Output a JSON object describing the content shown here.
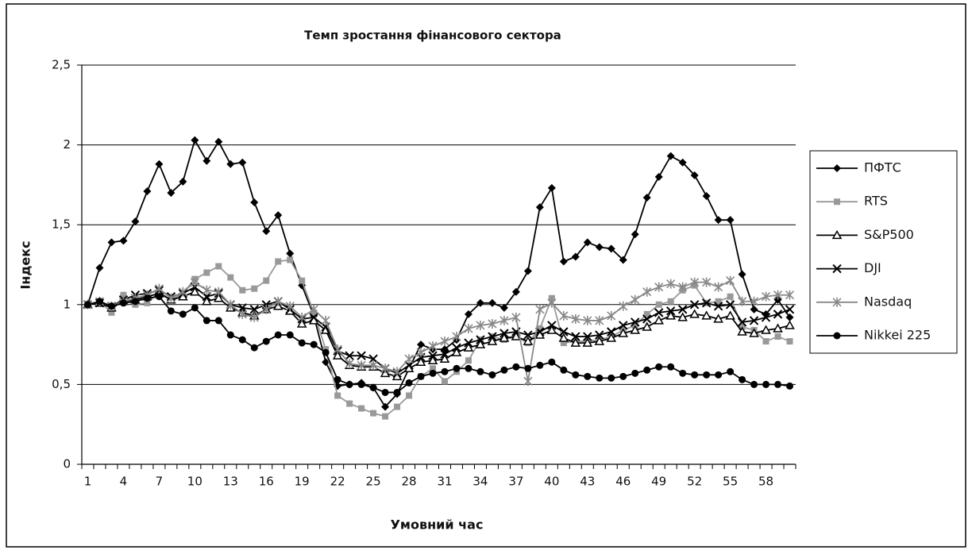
{
  "chart_data": {
    "type": "line",
    "title": "Темп зростання фінансового сектора",
    "xlabel": "Умовний час",
    "ylabel": "Індекс",
    "categories": [
      "1",
      null,
      null,
      "4",
      null,
      null,
      "7",
      null,
      null,
      "10",
      null,
      null,
      "13",
      null,
      null,
      "16",
      null,
      null,
      "19",
      null,
      null,
      "22",
      null,
      null,
      "25",
      null,
      null,
      "28",
      null,
      null,
      "31",
      null,
      null,
      "34",
      null,
      null,
      "37",
      null,
      null,
      "40",
      null,
      null,
      "43",
      null,
      null,
      "46",
      null,
      null,
      "49",
      null,
      null,
      "52",
      null,
      null,
      "55",
      null,
      null,
      "58",
      null,
      null
    ],
    "ylim": [
      0,
      2.5
    ],
    "yticks": [
      0,
      {
        "value": 0.5,
        "label": "0,5"
      },
      1,
      {
        "value": 1.5,
        "label": "1,5"
      },
      2,
      {
        "value": 2.5,
        "label": "2,5"
      }
    ],
    "grid": true,
    "legend": "right",
    "series": [
      {
        "name": "ПФТС",
        "color": "#000000",
        "marker": "diamond",
        "values": [
          1.0,
          1.23,
          1.39,
          1.4,
          1.52,
          1.71,
          1.88,
          1.7,
          1.77,
          2.03,
          1.9,
          2.02,
          1.88,
          1.89,
          1.64,
          1.46,
          1.56,
          1.32,
          1.12,
          0.93,
          0.64,
          0.49,
          0.5,
          0.51,
          0.48,
          0.36,
          0.44,
          0.6,
          0.75,
          0.72,
          0.72,
          0.78,
          0.94,
          1.01,
          1.01,
          0.98,
          1.08,
          1.21,
          1.61,
          1.73,
          1.27,
          1.3,
          1.39,
          1.36,
          1.35,
          1.28,
          1.44,
          1.67,
          1.8,
          1.93,
          1.89,
          1.81,
          1.68,
          1.53,
          1.53,
          1.19,
          0.97,
          0.94,
          1.03,
          0.92
        ]
      },
      {
        "name": "RTS",
        "color": "#999999",
        "marker": "square",
        "values": [
          1.0,
          1.02,
          0.95,
          1.06,
          1.0,
          1.01,
          1.08,
          1.03,
          1.07,
          1.16,
          1.2,
          1.24,
          1.17,
          1.09,
          1.1,
          1.15,
          1.27,
          1.28,
          1.15,
          0.95,
          0.72,
          0.43,
          0.38,
          0.35,
          0.32,
          0.3,
          0.36,
          0.43,
          0.55,
          0.6,
          0.52,
          0.58,
          0.65,
          0.78,
          0.8,
          0.78,
          0.8,
          0.76,
          0.85,
          1.04,
          0.76,
          0.77,
          0.77,
          0.78,
          0.8,
          0.84,
          0.87,
          0.94,
          1.0,
          1.02,
          1.09,
          1.12,
          1.01,
          1.02,
          1.05,
          0.86,
          0.84,
          0.77,
          0.8,
          0.77
        ]
      },
      {
        "name": "S&P500",
        "color": "#000000",
        "marker": "triangle",
        "values": [
          1.0,
          1.01,
          0.98,
          1.02,
          1.03,
          1.05,
          1.07,
          1.03,
          1.05,
          1.08,
          1.02,
          1.04,
          0.98,
          0.95,
          0.93,
          0.97,
          0.99,
          0.96,
          0.88,
          0.9,
          0.84,
          0.68,
          0.62,
          0.61,
          0.61,
          0.57,
          0.55,
          0.6,
          0.64,
          0.65,
          0.66,
          0.7,
          0.73,
          0.75,
          0.77,
          0.79,
          0.8,
          0.77,
          0.81,
          0.84,
          0.79,
          0.76,
          0.76,
          0.77,
          0.79,
          0.82,
          0.84,
          0.86,
          0.9,
          0.93,
          0.92,
          0.94,
          0.93,
          0.91,
          0.93,
          0.83,
          0.82,
          0.84,
          0.85,
          0.87
        ]
      },
      {
        "name": "DJI",
        "color": "#000000",
        "marker": "x",
        "values": [
          1.0,
          1.01,
          0.99,
          1.03,
          1.06,
          1.07,
          1.09,
          1.05,
          1.07,
          1.11,
          1.05,
          1.07,
          1.0,
          0.98,
          0.97,
          1.0,
          1.02,
          0.97,
          0.91,
          0.92,
          0.86,
          0.71,
          0.68,
          0.68,
          0.66,
          0.6,
          0.57,
          0.62,
          0.67,
          0.68,
          0.69,
          0.73,
          0.76,
          0.78,
          0.8,
          0.82,
          0.83,
          0.81,
          0.83,
          0.87,
          0.83,
          0.8,
          0.8,
          0.81,
          0.83,
          0.87,
          0.89,
          0.91,
          0.95,
          0.96,
          0.97,
          1.0,
          1.01,
          0.99,
          1.0,
          0.89,
          0.9,
          0.92,
          0.94,
          0.97
        ]
      },
      {
        "name": "Nasdaq",
        "color": "#888888",
        "marker": "star",
        "values": [
          1.0,
          1.02,
          0.99,
          1.02,
          1.04,
          1.06,
          1.1,
          1.04,
          1.08,
          1.14,
          1.09,
          1.08,
          1.0,
          0.94,
          0.92,
          0.97,
          1.02,
          0.99,
          0.92,
          0.97,
          0.9,
          0.72,
          0.63,
          0.62,
          0.62,
          0.6,
          0.58,
          0.66,
          0.7,
          0.74,
          0.77,
          0.8,
          0.85,
          0.87,
          0.88,
          0.9,
          0.92,
          0.52,
          0.97,
          1.01,
          0.93,
          0.91,
          0.9,
          0.9,
          0.93,
          0.99,
          1.03,
          1.08,
          1.11,
          1.13,
          1.11,
          1.14,
          1.14,
          1.11,
          1.15,
          1.02,
          1.02,
          1.05,
          1.06,
          1.06
        ]
      },
      {
        "name": "Nikkei 225",
        "color": "#000000",
        "marker": "circle",
        "values": [
          1.0,
          1.02,
          0.99,
          1.01,
          1.02,
          1.04,
          1.05,
          0.96,
          0.94,
          0.98,
          0.9,
          0.9,
          0.81,
          0.78,
          0.73,
          0.77,
          0.81,
          0.81,
          0.76,
          0.75,
          0.7,
          0.53,
          0.5,
          0.5,
          0.48,
          0.45,
          0.45,
          0.51,
          0.55,
          0.57,
          0.58,
          0.6,
          0.6,
          0.58,
          0.56,
          0.59,
          0.61,
          0.6,
          0.62,
          0.64,
          0.59,
          0.56,
          0.55,
          0.54,
          0.54,
          0.55,
          0.57,
          0.59,
          0.61,
          0.61,
          0.57,
          0.56,
          0.56,
          0.56,
          0.58,
          0.53,
          0.5,
          0.5,
          0.5,
          0.49
        ]
      }
    ]
  }
}
